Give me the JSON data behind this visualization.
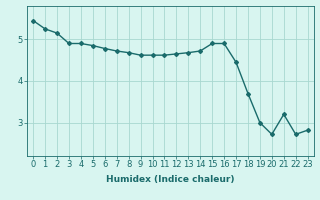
{
  "x": [
    0,
    1,
    2,
    3,
    4,
    5,
    6,
    7,
    8,
    9,
    10,
    11,
    12,
    13,
    14,
    15,
    16,
    17,
    18,
    19,
    20,
    21,
    22,
    23
  ],
  "y": [
    5.45,
    5.25,
    5.15,
    4.9,
    4.9,
    4.85,
    4.78,
    4.72,
    4.68,
    4.62,
    4.62,
    4.62,
    4.65,
    4.68,
    4.72,
    4.9,
    4.9,
    4.45,
    3.7,
    3.0,
    2.72,
    3.2,
    2.72,
    2.82
  ],
  "line_color": "#1a6b6b",
  "marker": "D",
  "marker_size": 2,
  "bg_color": "#d8f5f0",
  "grid_color": "#a8d8d0",
  "xlabel": "Humidex (Indice chaleur)",
  "xlim": [
    -0.5,
    23.5
  ],
  "ylim": [
    2.2,
    5.8
  ],
  "yticks": [
    3,
    4,
    5
  ],
  "xticks": [
    0,
    1,
    2,
    3,
    4,
    5,
    6,
    7,
    8,
    9,
    10,
    11,
    12,
    13,
    14,
    15,
    16,
    17,
    18,
    19,
    20,
    21,
    22,
    23
  ],
  "xlabel_fontsize": 6.5,
  "tick_fontsize": 6,
  "line_width": 1.0
}
